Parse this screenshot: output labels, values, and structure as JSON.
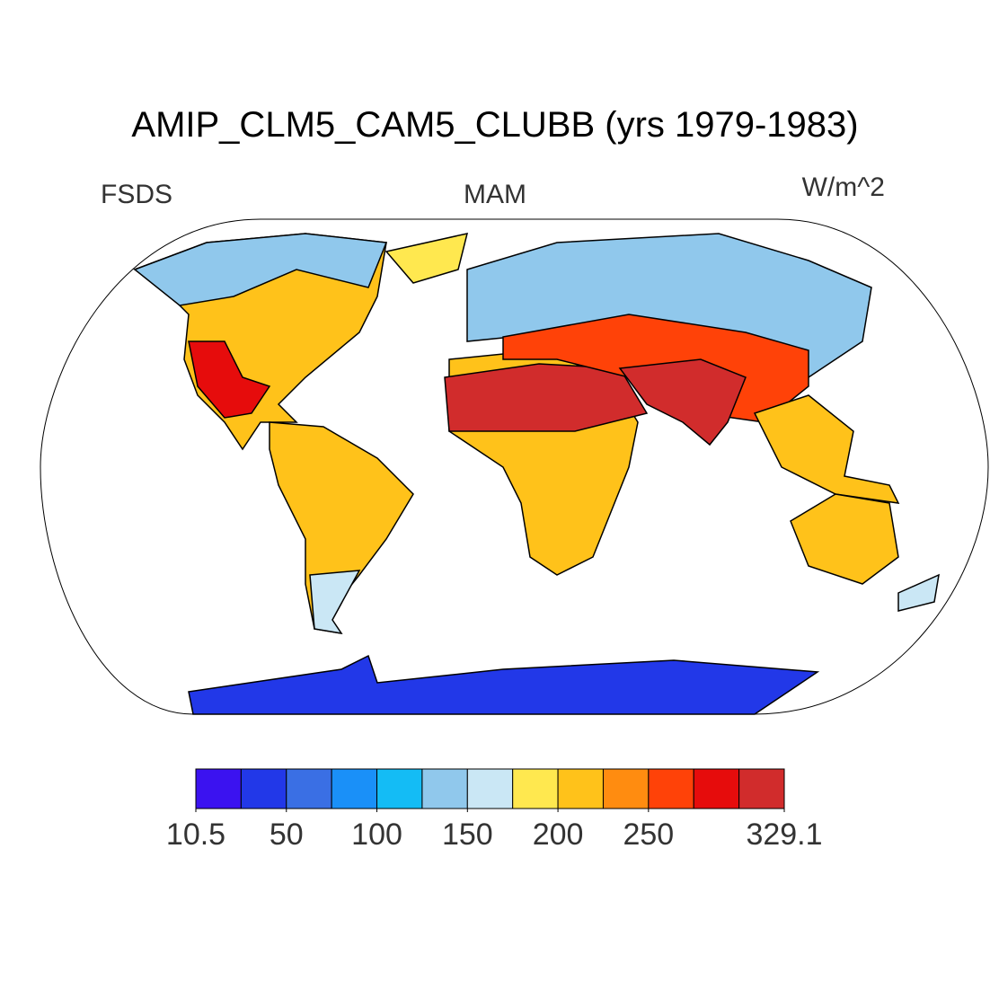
{
  "chart_data": {
    "type": "map",
    "title": "AMIP_CLM5_CAM5_CLUBB (yrs 1979-1983)",
    "left_label": "FSDS",
    "center_label": "MAM",
    "right_label": "W/m^2",
    "colorbar": {
      "levels": [
        10.5,
        25,
        50,
        75,
        100,
        125,
        150,
        175,
        200,
        225,
        250,
        275,
        300,
        329.1
      ],
      "colors": [
        "#3b12f0",
        "#2238e8",
        "#3a6fe4",
        "#1a90f8",
        "#14bcf5",
        "#90c8ec",
        "#cae7f5",
        "#ffe84f",
        "#ffc21a",
        "#ff8c10",
        "#ff4208",
        "#e60c0c",
        "#d12c2c"
      ],
      "ticks": [
        10.5,
        50,
        100,
        150,
        200,
        250,
        329.1
      ]
    }
  }
}
